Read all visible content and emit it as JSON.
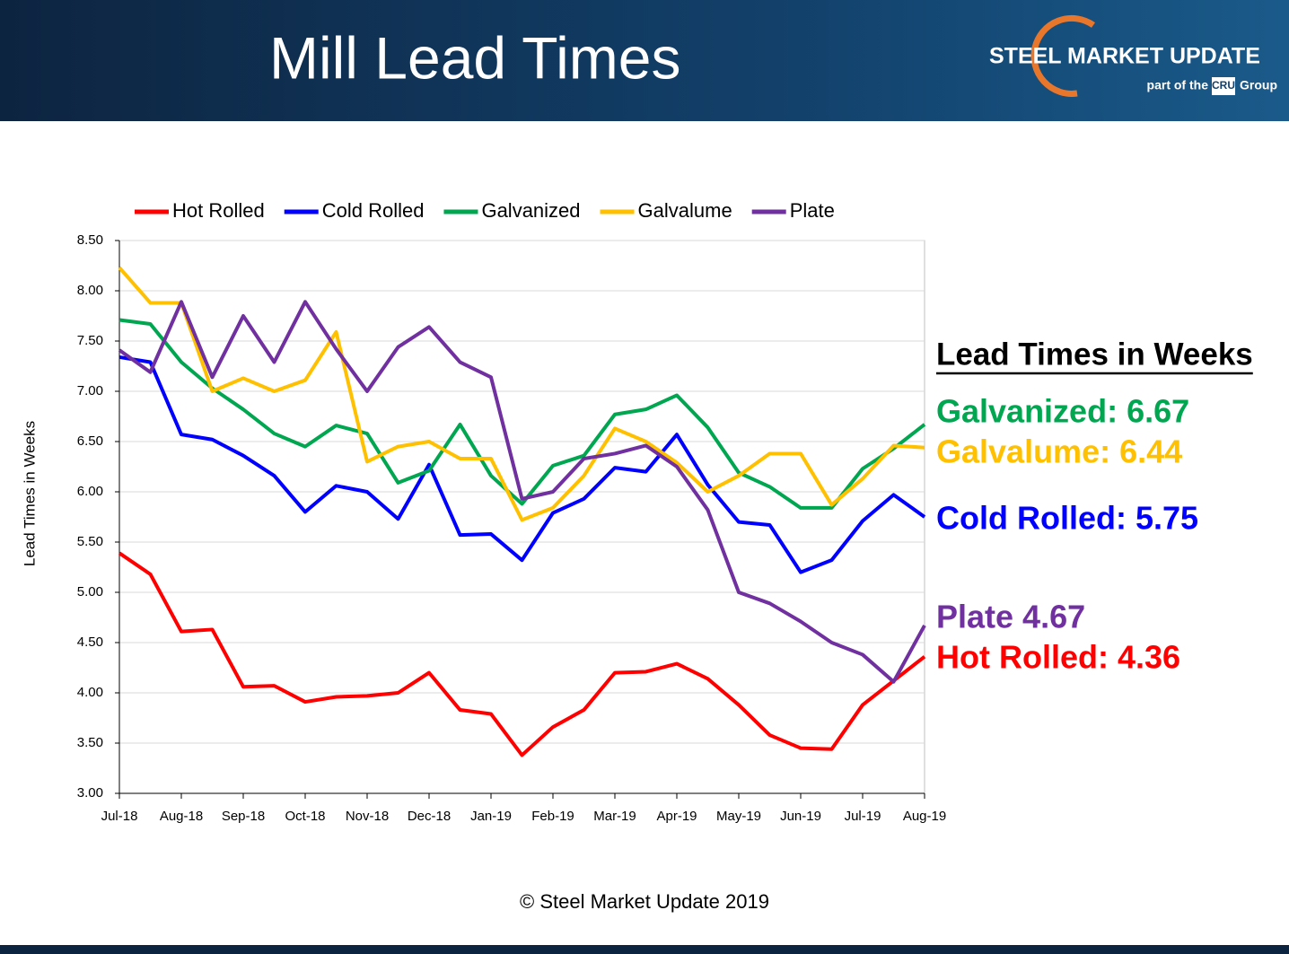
{
  "header": {
    "title": "Mill Lead Times",
    "logo_name": "STEEL MARKET UPDATE",
    "logo_sub": "part of the",
    "logo_cru": "CRU",
    "logo_group": "Group"
  },
  "chart_data": {
    "type": "line",
    "y_label": "Lead Times in Weeks",
    "categories": [
      "Jul-18",
      null,
      "Aug-18",
      null,
      "Sep-18",
      null,
      "Oct-18",
      null,
      "Nov-18",
      null,
      "Dec-18",
      null,
      "Jan-19",
      null,
      "Feb-19",
      null,
      "Mar-19",
      null,
      "Apr-19",
      null,
      "May-19",
      null,
      "Jun-19",
      null,
      "Jul-19",
      null,
      "Aug-19"
    ],
    "series": [
      {
        "name": "Hot Rolled",
        "color": "#ff0000",
        "values": [
          5.39,
          5.18,
          4.61,
          4.63,
          4.06,
          4.07,
          3.91,
          3.96,
          3.97,
          4.0,
          4.2,
          3.83,
          3.79,
          3.38,
          3.66,
          3.83,
          4.2,
          4.21,
          4.29,
          4.14,
          3.88,
          3.58,
          3.45,
          3.44,
          3.88,
          4.12,
          4.36
        ]
      },
      {
        "name": "Cold Rolled",
        "color": "#0000ff",
        "values": [
          7.34,
          7.29,
          6.57,
          6.52,
          6.36,
          6.16,
          5.8,
          6.06,
          6.0,
          5.73,
          6.27,
          5.57,
          5.58,
          5.32,
          5.79,
          5.93,
          6.24,
          6.2,
          6.57,
          6.07,
          5.7,
          5.67,
          5.2,
          5.32,
          5.71,
          5.97,
          5.75
        ]
      },
      {
        "name": "Galvanized",
        "color": "#00a650",
        "values": [
          7.71,
          7.67,
          7.29,
          7.03,
          6.82,
          6.58,
          6.45,
          6.66,
          6.58,
          6.09,
          6.21,
          6.67,
          6.16,
          5.88,
          6.26,
          6.36,
          6.77,
          6.82,
          6.96,
          6.64,
          6.19,
          6.05,
          5.84,
          5.84,
          6.23,
          6.43,
          6.67
        ]
      },
      {
        "name": "Galvalume",
        "color": "#ffc000",
        "values": [
          8.23,
          7.88,
          7.88,
          7.0,
          7.13,
          7.0,
          7.11,
          7.59,
          6.3,
          6.45,
          6.5,
          6.33,
          6.33,
          5.72,
          5.84,
          6.16,
          6.63,
          6.5,
          6.29,
          6.0,
          6.16,
          6.38,
          6.38,
          5.87,
          6.13,
          6.46,
          6.44
        ]
      },
      {
        "name": "Plate",
        "color": "#7030a0",
        "values": [
          7.41,
          7.19,
          7.89,
          7.14,
          7.75,
          7.29,
          7.89,
          7.42,
          7.0,
          7.44,
          7.64,
          7.29,
          7.14,
          5.93,
          6.0,
          6.33,
          6.38,
          6.46,
          6.25,
          5.82,
          5.0,
          4.89,
          4.71,
          4.5,
          4.38,
          4.11,
          4.67
        ]
      }
    ],
    "ylim": [
      3,
      8.5
    ],
    "yticks": [
      {
        "value": 3,
        "label": "3.00"
      },
      {
        "value": 3.5,
        "label": "3.50"
      },
      {
        "value": 4,
        "label": "4.00"
      },
      {
        "value": 4.5,
        "label": "4.50"
      },
      {
        "value": 5,
        "label": "5.00"
      },
      {
        "value": 5.5,
        "label": "5.50"
      },
      {
        "value": 6,
        "label": "6.00"
      },
      {
        "value": 6.5,
        "label": "6.50"
      },
      {
        "value": 7,
        "label": "7.00"
      },
      {
        "value": 7.5,
        "label": "7.50"
      },
      {
        "value": 8,
        "label": "8.00"
      },
      {
        "value": 8.5,
        "label": "8.50"
      }
    ],
    "grid": true,
    "legend": "top",
    "annotations": [
      {
        "text": "Lead Times in Weeks",
        "color": "#000000"
      },
      {
        "text": "Galvanized: 6.67",
        "color": "#00a650"
      },
      {
        "text": "Galvalume: 6.44",
        "color": "#ffc000"
      },
      {
        "text": "Cold Rolled: 5.75",
        "color": "#0000ff"
      },
      {
        "text": "Plate 4.67",
        "color": "#7030a0"
      },
      {
        "text": "Hot Rolled: 4.36",
        "color": "#ff0000"
      }
    ],
    "footer": "© Steel Market Update 2019"
  }
}
